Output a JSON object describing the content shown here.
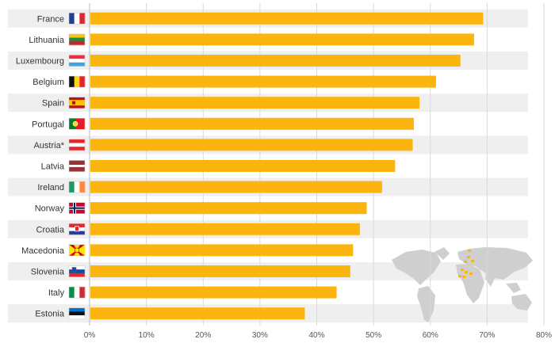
{
  "chart_data": {
    "type": "bar",
    "orientation": "horizontal",
    "title": "",
    "xlabel": "",
    "ylabel": "",
    "xlim": [
      0,
      80
    ],
    "x_ticks": [
      "0%",
      "10%",
      "20%",
      "30%",
      "40%",
      "50%",
      "60%",
      "70%",
      "80%"
    ],
    "categories": [
      "France",
      "Lithuania",
      "Luxembourg",
      "Belgium",
      "Spain",
      "Portugal",
      "Austria*",
      "Latvia",
      "Ireland",
      "Norway",
      "Croatia",
      "Macedonia",
      "Slovenia",
      "Italy",
      "Estonia"
    ],
    "values": [
      69.3,
      67.7,
      65.3,
      61.0,
      58.1,
      57.1,
      56.9,
      53.8,
      51.5,
      48.8,
      47.6,
      46.4,
      45.9,
      43.5,
      37.9
    ],
    "value_unit": "%",
    "bar_color": "#FCB40F",
    "grid": true
  }
}
